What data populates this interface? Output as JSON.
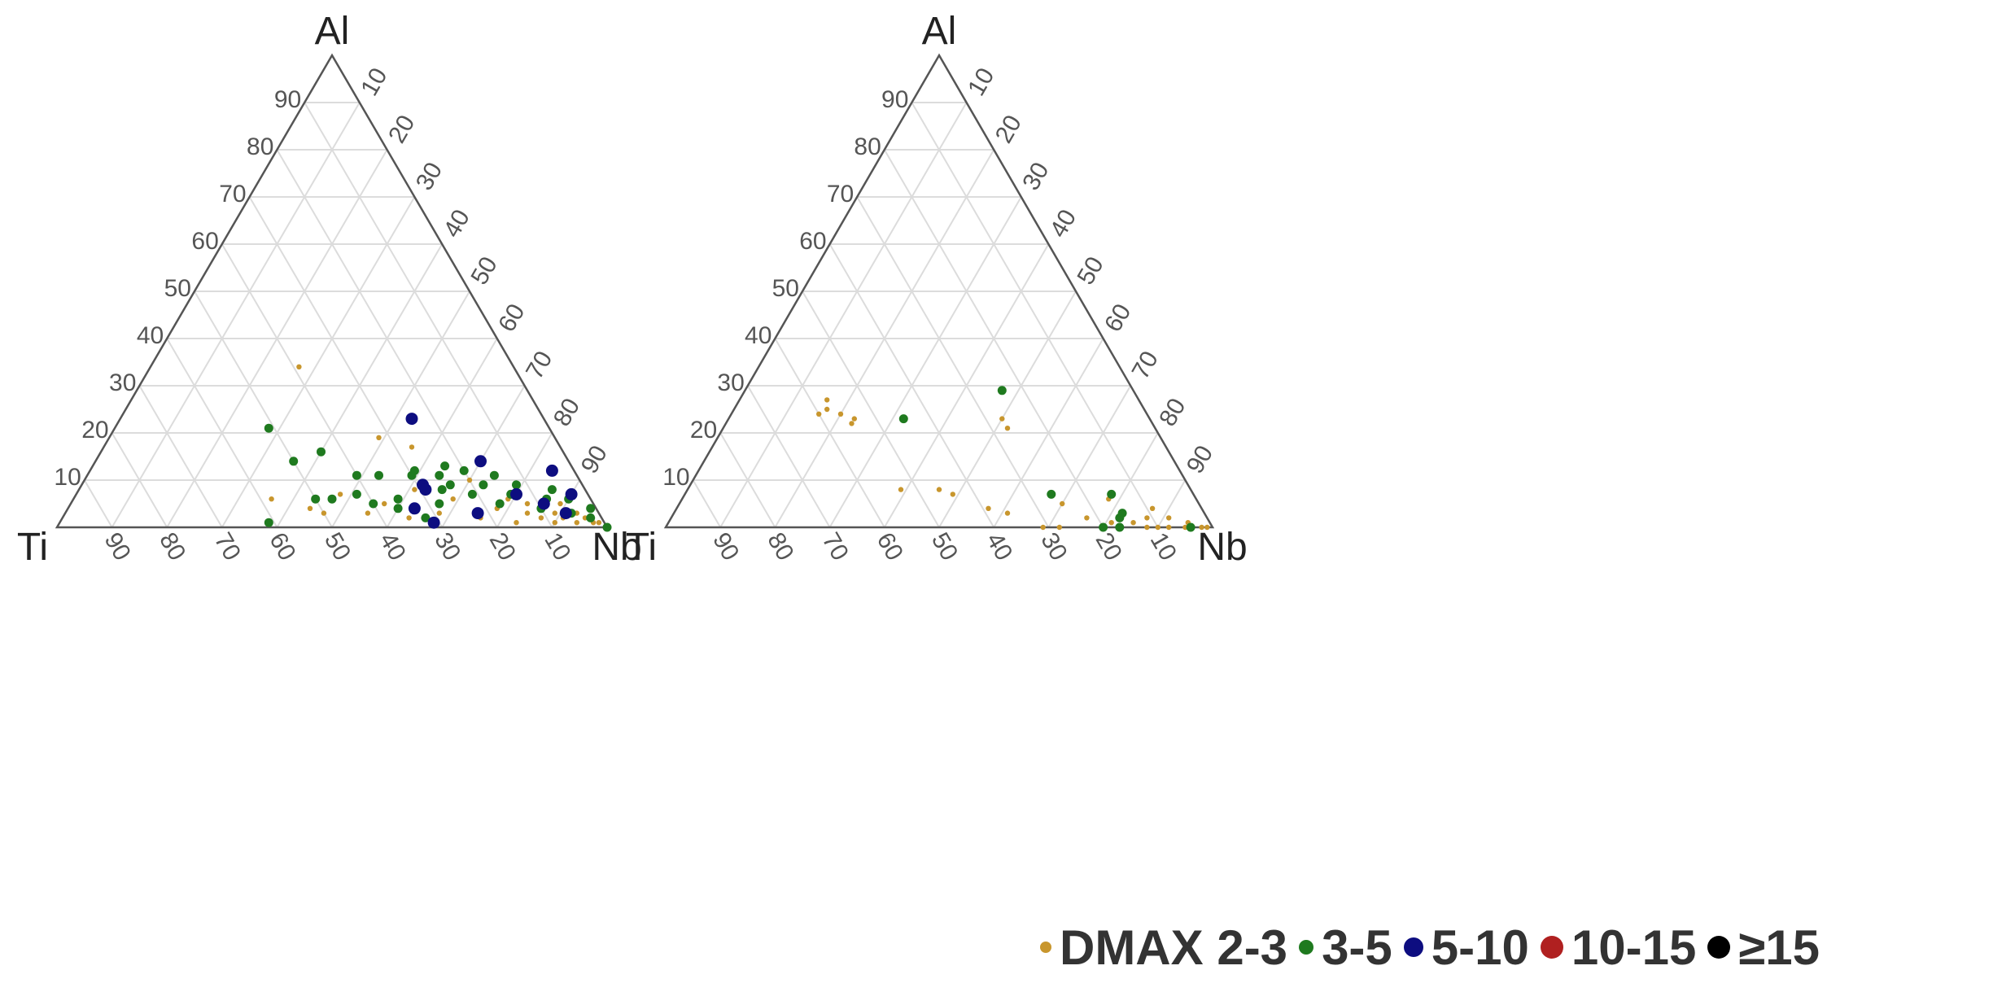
{
  "chart_data": [
    {
      "type": "scatter",
      "plot": "ternary",
      "vertex_labels": {
        "top": "Al",
        "left": "Ti",
        "right": "Nb"
      },
      "tick_labels": [
        "10",
        "20",
        "30",
        "40",
        "50",
        "60",
        "70",
        "80",
        "90"
      ],
      "grid": true,
      "series": [
        {
          "name": "DMAX 2-3",
          "color": "#c8962d",
          "points": [
            {
              "ti": 39,
              "al": 34,
              "nb": 27
            },
            {
              "ti": 32,
              "al": 19,
              "nb": 49
            },
            {
              "ti": 58,
              "al": 6,
              "nb": 36
            },
            {
              "ti": 52,
              "al": 4,
              "nb": 44
            },
            {
              "ti": 50,
              "al": 3,
              "nb": 47
            },
            {
              "ti": 45,
              "al": 7,
              "nb": 48
            },
            {
              "ti": 42,
              "al": 3,
              "nb": 55
            },
            {
              "ti": 38,
              "al": 5,
              "nb": 57
            },
            {
              "ti": 35,
              "al": 2,
              "nb": 63
            },
            {
              "ti": 31,
              "al": 8,
              "nb": 61
            },
            {
              "ti": 29,
              "al": 3,
              "nb": 68
            },
            {
              "ti": 27,
              "al": 17,
              "nb": 56
            },
            {
              "ti": 25,
              "al": 6,
              "nb": 69
            },
            {
              "ti": 22,
              "al": 2,
              "nb": 76
            },
            {
              "ti": 20,
              "al": 10,
              "nb": 70
            },
            {
              "ti": 18,
              "al": 4,
              "nb": 78
            },
            {
              "ti": 16,
              "al": 1,
              "nb": 83
            },
            {
              "ti": 15,
              "al": 6,
              "nb": 79
            },
            {
              "ti": 13,
              "al": 3,
              "nb": 84
            },
            {
              "ti": 12,
              "al": 5,
              "nb": 83
            },
            {
              "ti": 11,
              "al": 2,
              "nb": 87
            },
            {
              "ti": 10,
              "al": 4,
              "nb": 86
            },
            {
              "ti": 9,
              "al": 1,
              "nb": 90
            },
            {
              "ti": 8,
              "al": 3,
              "nb": 89
            },
            {
              "ti": 7,
              "al": 2,
              "nb": 91
            },
            {
              "ti": 6,
              "al": 5,
              "nb": 89
            },
            {
              "ti": 5,
              "al": 1,
              "nb": 94
            },
            {
              "ti": 4,
              "al": 3,
              "nb": 93
            },
            {
              "ti": 3,
              "al": 2,
              "nb": 95
            },
            {
              "ti": 2,
              "al": 1,
              "nb": 97
            },
            {
              "ti": 1,
              "al": 1,
              "nb": 98
            }
          ]
        },
        {
          "name": "3-5",
          "color": "#1f7a1f",
          "points": [
            {
              "ti": 61,
              "al": 1,
              "nb": 38
            },
            {
              "ti": 51,
              "al": 21,
              "nb": 28
            },
            {
              "ti": 44,
              "al": 16,
              "nb": 40
            },
            {
              "ti": 50,
              "al": 14,
              "nb": 36
            },
            {
              "ti": 50,
              "al": 6,
              "nb": 44
            },
            {
              "ti": 47,
              "al": 6,
              "nb": 47
            },
            {
              "ti": 42,
              "al": 7,
              "nb": 51
            },
            {
              "ti": 40,
              "al": 5,
              "nb": 55
            },
            {
              "ti": 40,
              "al": 11,
              "nb": 49
            },
            {
              "ti": 36,
              "al": 11,
              "nb": 53
            },
            {
              "ti": 35,
              "al": 6,
              "nb": 59
            },
            {
              "ti": 36,
              "al": 4,
              "nb": 60
            },
            {
              "ti": 32,
              "al": 2,
              "nb": 66
            },
            {
              "ti": 30,
              "al": 11,
              "nb": 59
            },
            {
              "ti": 29,
              "al": 12,
              "nb": 59
            },
            {
              "ti": 28,
              "al": 5,
              "nb": 67
            },
            {
              "ti": 26,
              "al": 8,
              "nb": 66
            },
            {
              "ti": 25,
              "al": 11,
              "nb": 64
            },
            {
              "ti": 24,
              "al": 9,
              "nb": 67
            },
            {
              "ti": 23,
              "al": 13,
              "nb": 64
            },
            {
              "ti": 21,
              "al": 7,
              "nb": 72
            },
            {
              "ti": 20,
              "al": 12,
              "nb": 68
            },
            {
              "ti": 18,
              "al": 9,
              "nb": 73
            },
            {
              "ti": 17,
              "al": 5,
              "nb": 78
            },
            {
              "ti": 15,
              "al": 11,
              "nb": 74
            },
            {
              "ti": 14,
              "al": 7,
              "nb": 79
            },
            {
              "ti": 12,
              "al": 9,
              "nb": 79
            },
            {
              "ti": 10,
              "al": 4,
              "nb": 86
            },
            {
              "ti": 8,
              "al": 6,
              "nb": 86
            },
            {
              "ti": 6,
              "al": 8,
              "nb": 86
            },
            {
              "ti": 5,
              "al": 3,
              "nb": 92
            },
            {
              "ti": 4,
              "al": 6,
              "nb": 90
            },
            {
              "ti": 2,
              "al": 2,
              "nb": 96
            },
            {
              "ti": 1,
              "al": 4,
              "nb": 95
            },
            {
              "ti": 0,
              "al": 0,
              "nb": 100
            }
          ]
        },
        {
          "name": "5-10",
          "color": "#0d0d80",
          "points": [
            {
              "ti": 24,
              "al": 23,
              "nb": 53
            },
            {
              "ti": 29,
              "al": 9,
              "nb": 62
            },
            {
              "ti": 29,
              "al": 8,
              "nb": 63
            },
            {
              "ti": 33,
              "al": 4,
              "nb": 63
            },
            {
              "ti": 31,
              "al": 1,
              "nb": 68
            },
            {
              "ti": 22,
              "al": 3,
              "nb": 75
            },
            {
              "ti": 16,
              "al": 14,
              "nb": 70
            },
            {
              "ti": 13,
              "al": 7,
              "nb": 80
            },
            {
              "ti": 9,
              "al": 5,
              "nb": 86
            },
            {
              "ti": 6,
              "al": 3,
              "nb": 91
            },
            {
              "ti": 4,
              "al": 12,
              "nb": 84
            },
            {
              "ti": 3,
              "al": 7,
              "nb": 90
            }
          ]
        },
        {
          "name": "10-15",
          "color": "#b02020",
          "points": []
        },
        {
          "name": "≥15",
          "color": "#000000",
          "points": []
        }
      ]
    },
    {
      "type": "scatter",
      "plot": "ternary",
      "vertex_labels": {
        "top": "Al",
        "left": "Ti",
        "right": "Nb"
      },
      "tick_labels": [
        "10",
        "20",
        "30",
        "40",
        "50",
        "60",
        "70",
        "80",
        "90"
      ],
      "grid": true,
      "series": [
        {
          "name": "DMAX 2-3",
          "color": "#c8962d",
          "points": [
            {
              "ti": 57,
              "al": 27,
              "nb": 16
            },
            {
              "ti": 58,
              "al": 25,
              "nb": 17
            },
            {
              "ti": 60,
              "al": 24,
              "nb": 16
            },
            {
              "ti": 56,
              "al": 24,
              "nb": 20
            },
            {
              "ti": 54,
              "al": 23,
              "nb": 23
            },
            {
              "ti": 55,
              "al": 22,
              "nb": 23
            },
            {
              "ti": 27,
              "al": 23,
              "nb": 50
            },
            {
              "ti": 27,
              "al": 21,
              "nb": 52
            },
            {
              "ti": 53,
              "al": 8,
              "nb": 39
            },
            {
              "ti": 46,
              "al": 8,
              "nb": 46
            },
            {
              "ti": 44,
              "al": 7,
              "nb": 49
            },
            {
              "ti": 39,
              "al": 4,
              "nb": 57
            },
            {
              "ti": 36,
              "al": 3,
              "nb": 61
            },
            {
              "ti": 31,
              "al": 0,
              "nb": 69
            },
            {
              "ti": 28,
              "al": 0,
              "nb": 72
            },
            {
              "ti": 26,
              "al": 7,
              "nb": 67
            },
            {
              "ti": 25,
              "al": 5,
              "nb": 70
            },
            {
              "ti": 22,
              "al": 2,
              "nb": 76
            },
            {
              "ti": 20,
              "al": 0,
              "nb": 80
            },
            {
              "ti": 18,
              "al": 1,
              "nb": 81
            },
            {
              "ti": 16,
              "al": 6,
              "nb": 78
            },
            {
              "ti": 15,
              "al": 3,
              "nb": 82
            },
            {
              "ti": 14,
              "al": 1,
              "nb": 85
            },
            {
              "ti": 12,
              "al": 0,
              "nb": 88
            },
            {
              "ti": 11,
              "al": 2,
              "nb": 87
            },
            {
              "ti": 10,
              "al": 0,
              "nb": 90
            },
            {
              "ti": 9,
              "al": 4,
              "nb": 87
            },
            {
              "ti": 8,
              "al": 0,
              "nb": 92
            },
            {
              "ti": 7,
              "al": 2,
              "nb": 91
            },
            {
              "ti": 5,
              "al": 0,
              "nb": 95
            },
            {
              "ti": 4,
              "al": 1,
              "nb": 95
            },
            {
              "ti": 2,
              "al": 0,
              "nb": 98
            },
            {
              "ti": 1,
              "al": 0,
              "nb": 99
            }
          ]
        },
        {
          "name": "3-5",
          "color": "#1f7a1f",
          "points": [
            {
              "ti": 45,
              "al": 23,
              "nb": 32
            },
            {
              "ti": 24,
              "al": 29,
              "nb": 47
            },
            {
              "ti": 26,
              "al": 7,
              "nb": 67
            },
            {
              "ti": 20,
              "al": 0,
              "nb": 80
            },
            {
              "ti": 15,
              "al": 7,
              "nb": 78
            },
            {
              "ti": 16,
              "al": 2,
              "nb": 82
            },
            {
              "ti": 15,
              "al": 3,
              "nb": 82
            },
            {
              "ti": 17,
              "al": 0,
              "nb": 83
            },
            {
              "ti": 4,
              "al": 0,
              "nb": 96
            }
          ]
        },
        {
          "name": "5-10",
          "color": "#0d0d80",
          "points": []
        },
        {
          "name": "10-15",
          "color": "#b02020",
          "points": []
        },
        {
          "name": "≥15",
          "color": "#000000",
          "points": []
        }
      ]
    }
  ],
  "legend": {
    "items": [
      {
        "label": "DMAX 2-3",
        "color": "#c8962d"
      },
      {
        "label": "3-5",
        "color": "#1f7a1f"
      },
      {
        "label": "5-10",
        "color": "#0d0d80"
      },
      {
        "label": "10-15",
        "color": "#b02020"
      },
      {
        "label": "≥15",
        "color": "#000000"
      }
    ]
  }
}
